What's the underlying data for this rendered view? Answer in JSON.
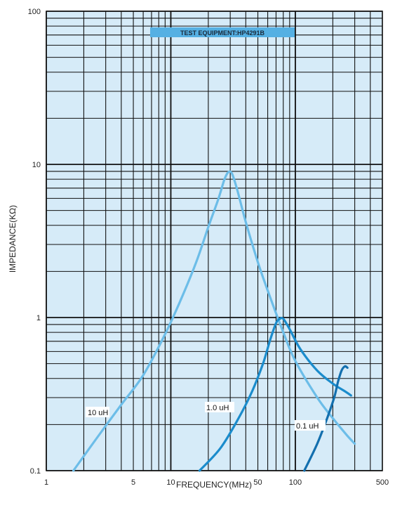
{
  "chart_data": {
    "type": "line",
    "xscale": "log",
    "yscale": "log",
    "xlim": [
      1,
      500
    ],
    "ylim": [
      0.1,
      100
    ],
    "xlabel": "FREQUENCY(MHz)",
    "ylabel": "IMPEDANCE(KΩ)",
    "x_ticks": [
      {
        "value": 1,
        "label": "1"
      },
      {
        "value": 5,
        "label": "5"
      },
      {
        "value": 10,
        "label": "10"
      },
      {
        "value": 50,
        "label": "50"
      },
      {
        "value": 100,
        "label": "100"
      },
      {
        "value": 500,
        "label": "500"
      }
    ],
    "y_ticks": [
      {
        "value": 0.1,
        "label": "0.1"
      },
      {
        "value": 1,
        "label": "1"
      },
      {
        "value": 10,
        "label": "10"
      },
      {
        "value": 100,
        "label": "100"
      }
    ],
    "grid": true,
    "annotation": "TEST EQUIPMENT:HP4291B",
    "series": [
      {
        "name": "10 uH",
        "color": "#6cbde8",
        "points": [
          [
            1.65,
            0.1
          ],
          [
            2.5,
            0.16
          ],
          [
            4,
            0.27
          ],
          [
            6,
            0.42
          ],
          [
            9,
            0.78
          ],
          [
            12,
            1.3
          ],
          [
            16,
            2.3
          ],
          [
            20,
            3.9
          ],
          [
            24,
            5.9
          ],
          [
            27,
            8.0
          ],
          [
            29,
            8.9
          ],
          [
            31,
            8.7
          ],
          [
            34,
            6.9
          ],
          [
            40,
            4.2
          ],
          [
            50,
            2.3
          ],
          [
            60,
            1.5
          ],
          [
            80,
            0.8
          ],
          [
            100,
            0.52
          ],
          [
            150,
            0.3
          ],
          [
            200,
            0.22
          ],
          [
            260,
            0.17
          ],
          [
            300,
            0.15
          ]
        ]
      },
      {
        "name": "1.0 uH",
        "color": "#1b8ccc",
        "points": [
          [
            17,
            0.1
          ],
          [
            25,
            0.14
          ],
          [
            35,
            0.22
          ],
          [
            45,
            0.33
          ],
          [
            55,
            0.5
          ],
          [
            63,
            0.72
          ],
          [
            70,
            0.92
          ],
          [
            75,
            0.98
          ],
          [
            80,
            0.98
          ],
          [
            90,
            0.84
          ],
          [
            110,
            0.62
          ],
          [
            150,
            0.45
          ],
          [
            200,
            0.37
          ],
          [
            250,
            0.33
          ],
          [
            280,
            0.31
          ]
        ]
      },
      {
        "name": "0.1 uH",
        "color": "#136fae",
        "points": [
          [
            118,
            0.1
          ],
          [
            150,
            0.15
          ],
          [
            180,
            0.22
          ],
          [
            205,
            0.3
          ],
          [
            220,
            0.38
          ],
          [
            235,
            0.45
          ],
          [
            250,
            0.48
          ],
          [
            262,
            0.47
          ]
        ]
      }
    ]
  }
}
